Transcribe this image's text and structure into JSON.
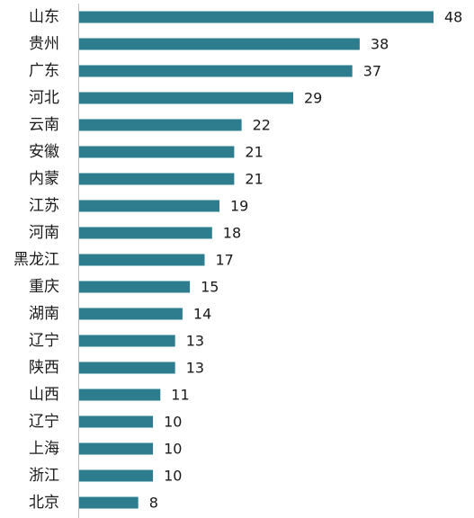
{
  "chart_data": {
    "type": "bar",
    "orientation": "horizontal",
    "categories": [
      "山东",
      "贵州",
      "广东",
      "河北",
      "云南",
      "安徽",
      "内蒙",
      "江苏",
      "河南",
      "黑龙江",
      "重庆",
      "湖南",
      "辽宁",
      "陕西",
      "山西",
      "辽宁",
      "上海",
      "浙江",
      "北京"
    ],
    "values": [
      48,
      38,
      37,
      29,
      22,
      21,
      21,
      19,
      18,
      17,
      15,
      14,
      13,
      13,
      11,
      10,
      10,
      10,
      8
    ],
    "value_labels": [
      "48",
      "38",
      "37",
      "29",
      "22",
      "21",
      "21",
      "19",
      "18",
      "17",
      "15",
      "14",
      "13",
      "13",
      "11",
      "10",
      "10",
      "10",
      "8"
    ],
    "title": "",
    "xlabel": "",
    "ylabel": "",
    "xlim": [
      0,
      48
    ],
    "grid": false,
    "legend": "none",
    "bar_color": "#2e7d8f",
    "axis_color": "#bfbfbf"
  }
}
